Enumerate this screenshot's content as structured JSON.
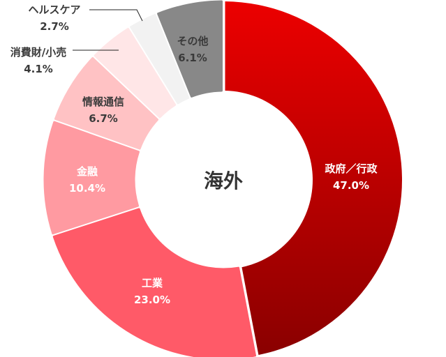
{
  "chart_data": {
    "type": "pie",
    "variant": "donut",
    "title": "海外",
    "categories": [
      "政府／行政",
      "工業",
      "金融",
      "情報通信",
      "消費財/小売",
      "ヘルスケア",
      "その他"
    ],
    "values": [
      47.0,
      23.0,
      10.4,
      6.7,
      4.1,
      2.7,
      6.1
    ],
    "value_labels": [
      "47.0%",
      "23.0%",
      "10.4%",
      "6.7%",
      "4.1%",
      "2.7%",
      "6.1%"
    ],
    "colors": [
      "#c40000",
      "#ff5a68",
      "#ff9aa1",
      "#ffc2c4",
      "#ffe6e7",
      "#f2f2f2",
      "#888888"
    ],
    "start_angle_deg": 0,
    "direction": "clockwise",
    "legend": "none"
  },
  "center_label": "海外"
}
